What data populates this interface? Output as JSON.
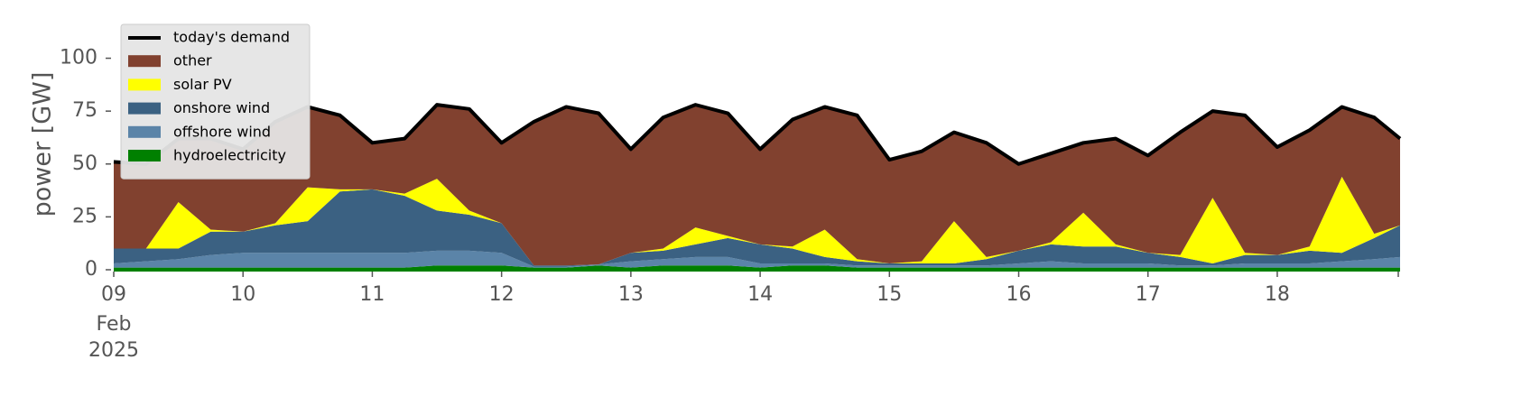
{
  "chart_data": {
    "type": "stacked_area",
    "ylabel": "power [GW]",
    "x": [
      9,
      9.25,
      9.5,
      9.75,
      10,
      10.25,
      10.5,
      10.75,
      11,
      11.25,
      11.5,
      11.75,
      12,
      12.25,
      12.5,
      12.75,
      13,
      13.25,
      13.5,
      13.75,
      14,
      14.25,
      14.5,
      14.75,
      15,
      15.25,
      15.5,
      15.75,
      16,
      16.25,
      16.5,
      16.75,
      17,
      17.25,
      17.5,
      17.75,
      18,
      18.25,
      18.5,
      18.75,
      18.95
    ],
    "demand": {
      "name": "today's demand",
      "color": "#000000",
      "values": [
        51,
        50,
        62,
        62,
        57,
        70,
        77,
        73,
        60,
        62,
        78,
        76,
        60,
        70,
        77,
        74,
        57,
        72,
        78,
        74,
        57,
        71,
        77,
        73,
        52,
        56,
        65,
        60,
        50,
        55,
        60,
        62,
        54,
        65,
        75,
        73,
        58,
        66,
        77,
        72,
        62
      ]
    },
    "series": [
      {
        "name": "other",
        "color": "#81412f",
        "values": [
          41,
          40,
          30,
          43,
          39,
          48,
          38,
          35,
          22,
          26,
          35,
          48,
          38,
          68,
          75,
          71.5,
          49,
          62,
          58,
          58,
          45,
          60,
          58,
          68,
          49,
          52,
          42,
          54,
          41,
          42,
          33,
          50,
          46,
          58,
          41,
          65,
          51,
          55,
          33,
          55,
          41
        ]
      },
      {
        "name": "solar PV",
        "color": "#ffff00",
        "values": [
          0,
          0,
          22,
          1,
          0,
          1,
          16,
          1,
          0,
          1,
          15,
          2,
          0,
          0,
          0,
          0,
          0,
          1,
          8,
          1,
          0,
          1,
          13,
          1,
          0,
          1,
          20,
          1,
          0,
          1,
          16,
          1,
          0,
          1,
          31,
          1,
          0,
          2,
          36,
          2,
          0
        ]
      },
      {
        "name": "onshore wind",
        "color": "#3b6182",
        "values": [
          7,
          6,
          5,
          11,
          10,
          13,
          15,
          29,
          30,
          27,
          19,
          17,
          14,
          0.5,
          0.5,
          0,
          4,
          4,
          6,
          9,
          9,
          7,
          3,
          2,
          1,
          1,
          1,
          3,
          6,
          8,
          8,
          8,
          5,
          4,
          1,
          4,
          4,
          6,
          4,
          10,
          15
        ]
      },
      {
        "name": "offshore wind",
        "color": "#5b84a8",
        "values": [
          2,
          3,
          4,
          6,
          7,
          7,
          7,
          7,
          7,
          7,
          7,
          7,
          6,
          0.5,
          0.5,
          0.5,
          3,
          3,
          4,
          4,
          2,
          1,
          1,
          1,
          1,
          1,
          1,
          1,
          2,
          3,
          2,
          2,
          2,
          1,
          1,
          2,
          2,
          2,
          3,
          4,
          5
        ]
      },
      {
        "name": "hydroelectricity",
        "color": "#008000",
        "values": [
          1,
          1,
          1,
          1,
          1,
          1,
          1,
          1,
          1,
          1,
          2,
          2,
          2,
          1,
          1,
          2,
          1,
          2,
          2,
          2,
          1,
          2,
          2,
          1,
          1,
          1,
          1,
          1,
          1,
          1,
          1,
          1,
          1,
          1,
          1,
          1,
          1,
          1,
          1,
          1,
          1
        ]
      }
    ],
    "xlim": [
      9,
      18.95
    ],
    "xticks": [
      {
        "value": 9,
        "label": "09"
      },
      10,
      11,
      12,
      13,
      14,
      15,
      16,
      17,
      18
    ],
    "xtick_sublabels": [
      "Feb",
      "2025"
    ],
    "ylim": [
      0,
      119
    ],
    "yticks": [
      0,
      25,
      50,
      75,
      100
    ],
    "legend": "upper left"
  }
}
